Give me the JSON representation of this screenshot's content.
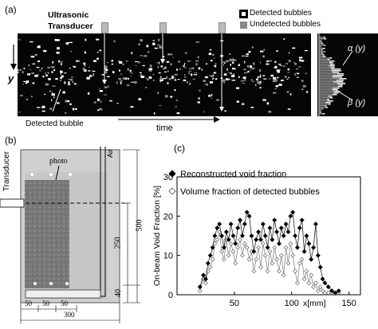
{
  "panel_a": {
    "label": "(a)",
    "transducer_label_line1": "Ultrasonic",
    "transducer_label_line2": "Transducer",
    "legend_detected": "Detected bubbles",
    "legend_undetected": "Undetected bubbles",
    "y_label": "y",
    "time_label": "time",
    "detected_bubble_label": "Detected bubble",
    "alpha_label": "α (y)",
    "beta_label": "β (y)"
  },
  "panel_b": {
    "label": "(b)",
    "transducer_label": "Transducer",
    "photo_label": "photo",
    "air_label": "Air",
    "dim_250": "250",
    "dim_500": "500",
    "dim_40": "40",
    "dim_50a": "50",
    "dim_50b": "50",
    "dim_50c": "50",
    "dim_300": "300"
  },
  "panel_c": {
    "label": "(c)"
  },
  "chart_data": {
    "type": "line",
    "title": "",
    "xlabel": "x[mm]",
    "ylabel": "On-beam Void Fraction [%]",
    "xlim": [
      0,
      160
    ],
    "ylim": [
      0,
      30
    ],
    "xticks": [
      50,
      100,
      150
    ],
    "yticks": [
      0,
      10,
      20,
      30
    ],
    "legend_position": "top",
    "series": [
      {
        "name": "Reconstructed void fraction",
        "marker": "filled-diamond",
        "color": "#000000",
        "x": [
          20,
          23,
          25,
          27,
          29,
          31,
          33,
          35,
          37,
          39,
          41,
          43,
          45,
          47,
          49,
          51,
          53,
          55,
          57,
          59,
          61,
          63,
          65,
          67,
          69,
          71,
          73,
          75,
          77,
          79,
          81,
          83,
          85,
          87,
          89,
          91,
          93,
          95,
          97,
          99,
          101,
          103,
          105,
          107,
          109,
          111,
          113,
          115,
          117,
          119,
          121,
          123,
          125,
          127,
          129,
          132,
          135,
          138,
          141
        ],
        "y": [
          2,
          5,
          4,
          8,
          10,
          12,
          15,
          17,
          18,
          15,
          12,
          16,
          14,
          18,
          15,
          13,
          17,
          19,
          15,
          18,
          21,
          20,
          15,
          11,
          14,
          16,
          14,
          18,
          15,
          12,
          17,
          14,
          19,
          16,
          13,
          17,
          15,
          18,
          16,
          20,
          21,
          15,
          12,
          17,
          19,
          11,
          15,
          13,
          9,
          12,
          18,
          10,
          7,
          4,
          3,
          2,
          1,
          0.5,
          1
        ]
      },
      {
        "name": "Volume fraction of detected bubbles",
        "marker": "open-diamond",
        "color": "#555555",
        "x": [
          20,
          23,
          25,
          27,
          29,
          31,
          33,
          35,
          37,
          39,
          41,
          43,
          45,
          47,
          49,
          51,
          53,
          55,
          57,
          59,
          61,
          63,
          65,
          67,
          69,
          71,
          73,
          75,
          77,
          79,
          81,
          83,
          85,
          87,
          89,
          91,
          93,
          95,
          97,
          99,
          101,
          103,
          105,
          107,
          109,
          111,
          113,
          115,
          117,
          119,
          121,
          123,
          125,
          127,
          129,
          132,
          135,
          138,
          141
        ],
        "y": [
          1,
          4,
          3,
          6,
          7,
          9,
          13,
          14,
          16,
          11,
          9,
          14,
          10,
          13,
          11,
          8,
          12,
          14,
          10,
          13,
          12,
          9,
          11,
          6,
          9,
          12,
          7,
          13,
          10,
          6,
          11,
          8,
          12,
          9,
          6,
          10,
          5,
          12,
          8,
          13,
          10,
          6,
          3,
          8,
          9,
          4,
          6,
          3,
          5,
          2,
          3,
          1,
          2,
          1,
          0.5,
          0.5,
          0.5,
          0.2,
          0.5
        ]
      }
    ]
  }
}
